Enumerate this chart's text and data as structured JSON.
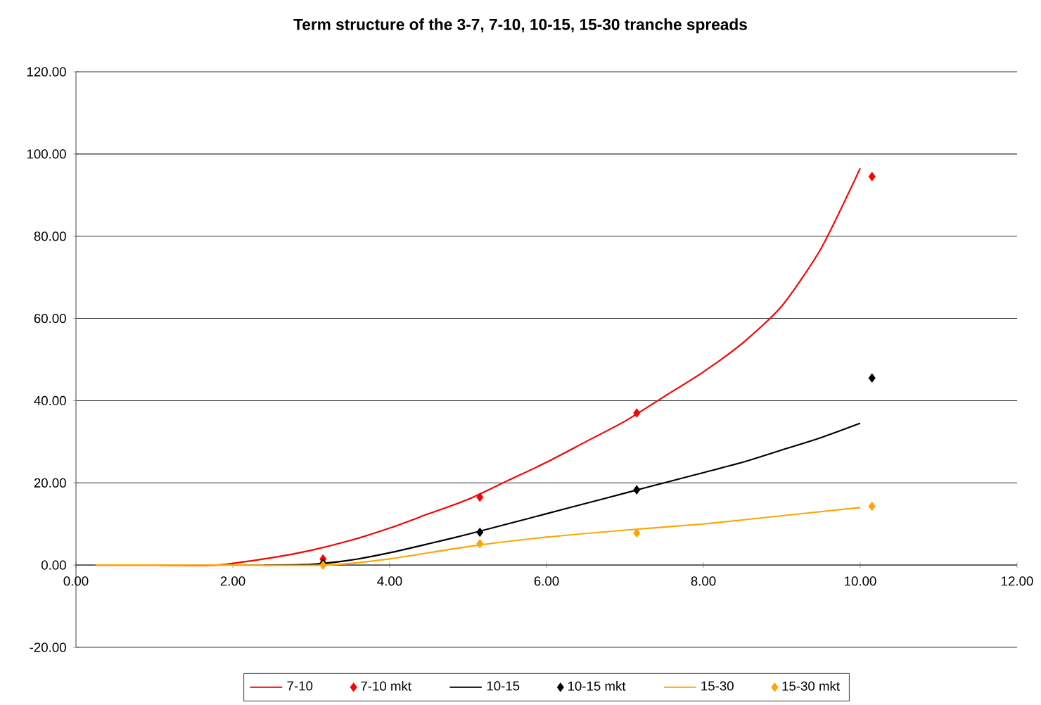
{
  "chart_data": {
    "type": "line",
    "title": "Term structure of the 3-7, 7-10, 10-15, 15-30 tranche spreads",
    "series": [
      {
        "name": "7-10",
        "type": "line",
        "color": "#ff0000",
        "marker": "none",
        "x": [
          0.25,
          1.0,
          1.8,
          2.5,
          3.0,
          3.5,
          4.0,
          4.5,
          5.0,
          5.5,
          6.0,
          6.5,
          7.0,
          7.5,
          8.0,
          8.5,
          9.0,
          9.5,
          10.0
        ],
        "values": [
          0,
          0,
          0,
          1.8,
          3.6,
          6,
          9,
          12.5,
          16,
          20.5,
          25,
          30,
          35,
          41,
          47,
          54,
          63,
          77,
          96.5
        ]
      },
      {
        "name": "7-10 mkt",
        "type": "scatter",
        "color": "#ff0000",
        "marker": "diamond",
        "x": [
          3.15,
          5.15,
          7.15,
          10.15
        ],
        "values": [
          1.5,
          16.5,
          37,
          94.5
        ]
      },
      {
        "name": "10-15",
        "type": "line",
        "color": "#000000",
        "marker": "none",
        "x": [
          2.4,
          3.0,
          3.5,
          4.0,
          4.5,
          5.0,
          5.5,
          6.0,
          6.5,
          7.0,
          7.5,
          8.0,
          8.5,
          9.0,
          9.5,
          10.0
        ],
        "values": [
          0,
          0.2,
          1.2,
          3,
          5.2,
          7.5,
          10,
          12.5,
          15,
          17.5,
          20,
          22.5,
          25,
          28,
          31,
          34.5
        ]
      },
      {
        "name": "10-15 mkt",
        "type": "scatter",
        "color": "#000000",
        "marker": "diamond",
        "x": [
          3.15,
          5.15,
          7.15,
          10.15
        ],
        "values": [
          0.5,
          8,
          18.3,
          45.5
        ]
      },
      {
        "name": "15-30",
        "type": "line",
        "color": "#ffa500",
        "marker": "none",
        "x": [
          0.25,
          1.0,
          2.0,
          3.2,
          4.0,
          5.0,
          6.0,
          7.0,
          8.0,
          9.0,
          10.0
        ],
        "values": [
          0,
          0,
          0,
          0,
          1.5,
          4.5,
          6.8,
          8.5,
          10,
          12,
          14
        ]
      },
      {
        "name": "15-30 mkt",
        "type": "scatter",
        "color": "#ffa500",
        "marker": "diamond",
        "x": [
          3.15,
          5.15,
          7.15,
          10.15
        ],
        "values": [
          0,
          5.2,
          7.8,
          14.3
        ]
      }
    ],
    "xlim": [
      0,
      12
    ],
    "xticks": [
      {
        "value": 0,
        "label": "0.00"
      },
      {
        "value": 2,
        "label": "2.00"
      },
      {
        "value": 4,
        "label": "4.00"
      },
      {
        "value": 6,
        "label": "6.00"
      },
      {
        "value": 8,
        "label": "8.00"
      },
      {
        "value": 10,
        "label": "10.00"
      },
      {
        "value": 12,
        "label": "12.00"
      }
    ],
    "ylim": [
      -20,
      120
    ],
    "yticks": [
      {
        "value": -20,
        "label": "-20.00"
      },
      {
        "value": 0,
        "label": "0.00"
      },
      {
        "value": 20,
        "label": "20.00"
      },
      {
        "value": 40,
        "label": "40.00"
      },
      {
        "value": 60,
        "label": "60.00"
      },
      {
        "value": 80,
        "label": "80.00"
      },
      {
        "value": 100,
        "label": "100.00"
      },
      {
        "value": 120,
        "label": "120.00"
      }
    ],
    "grid": "y",
    "legend": "bottom"
  }
}
